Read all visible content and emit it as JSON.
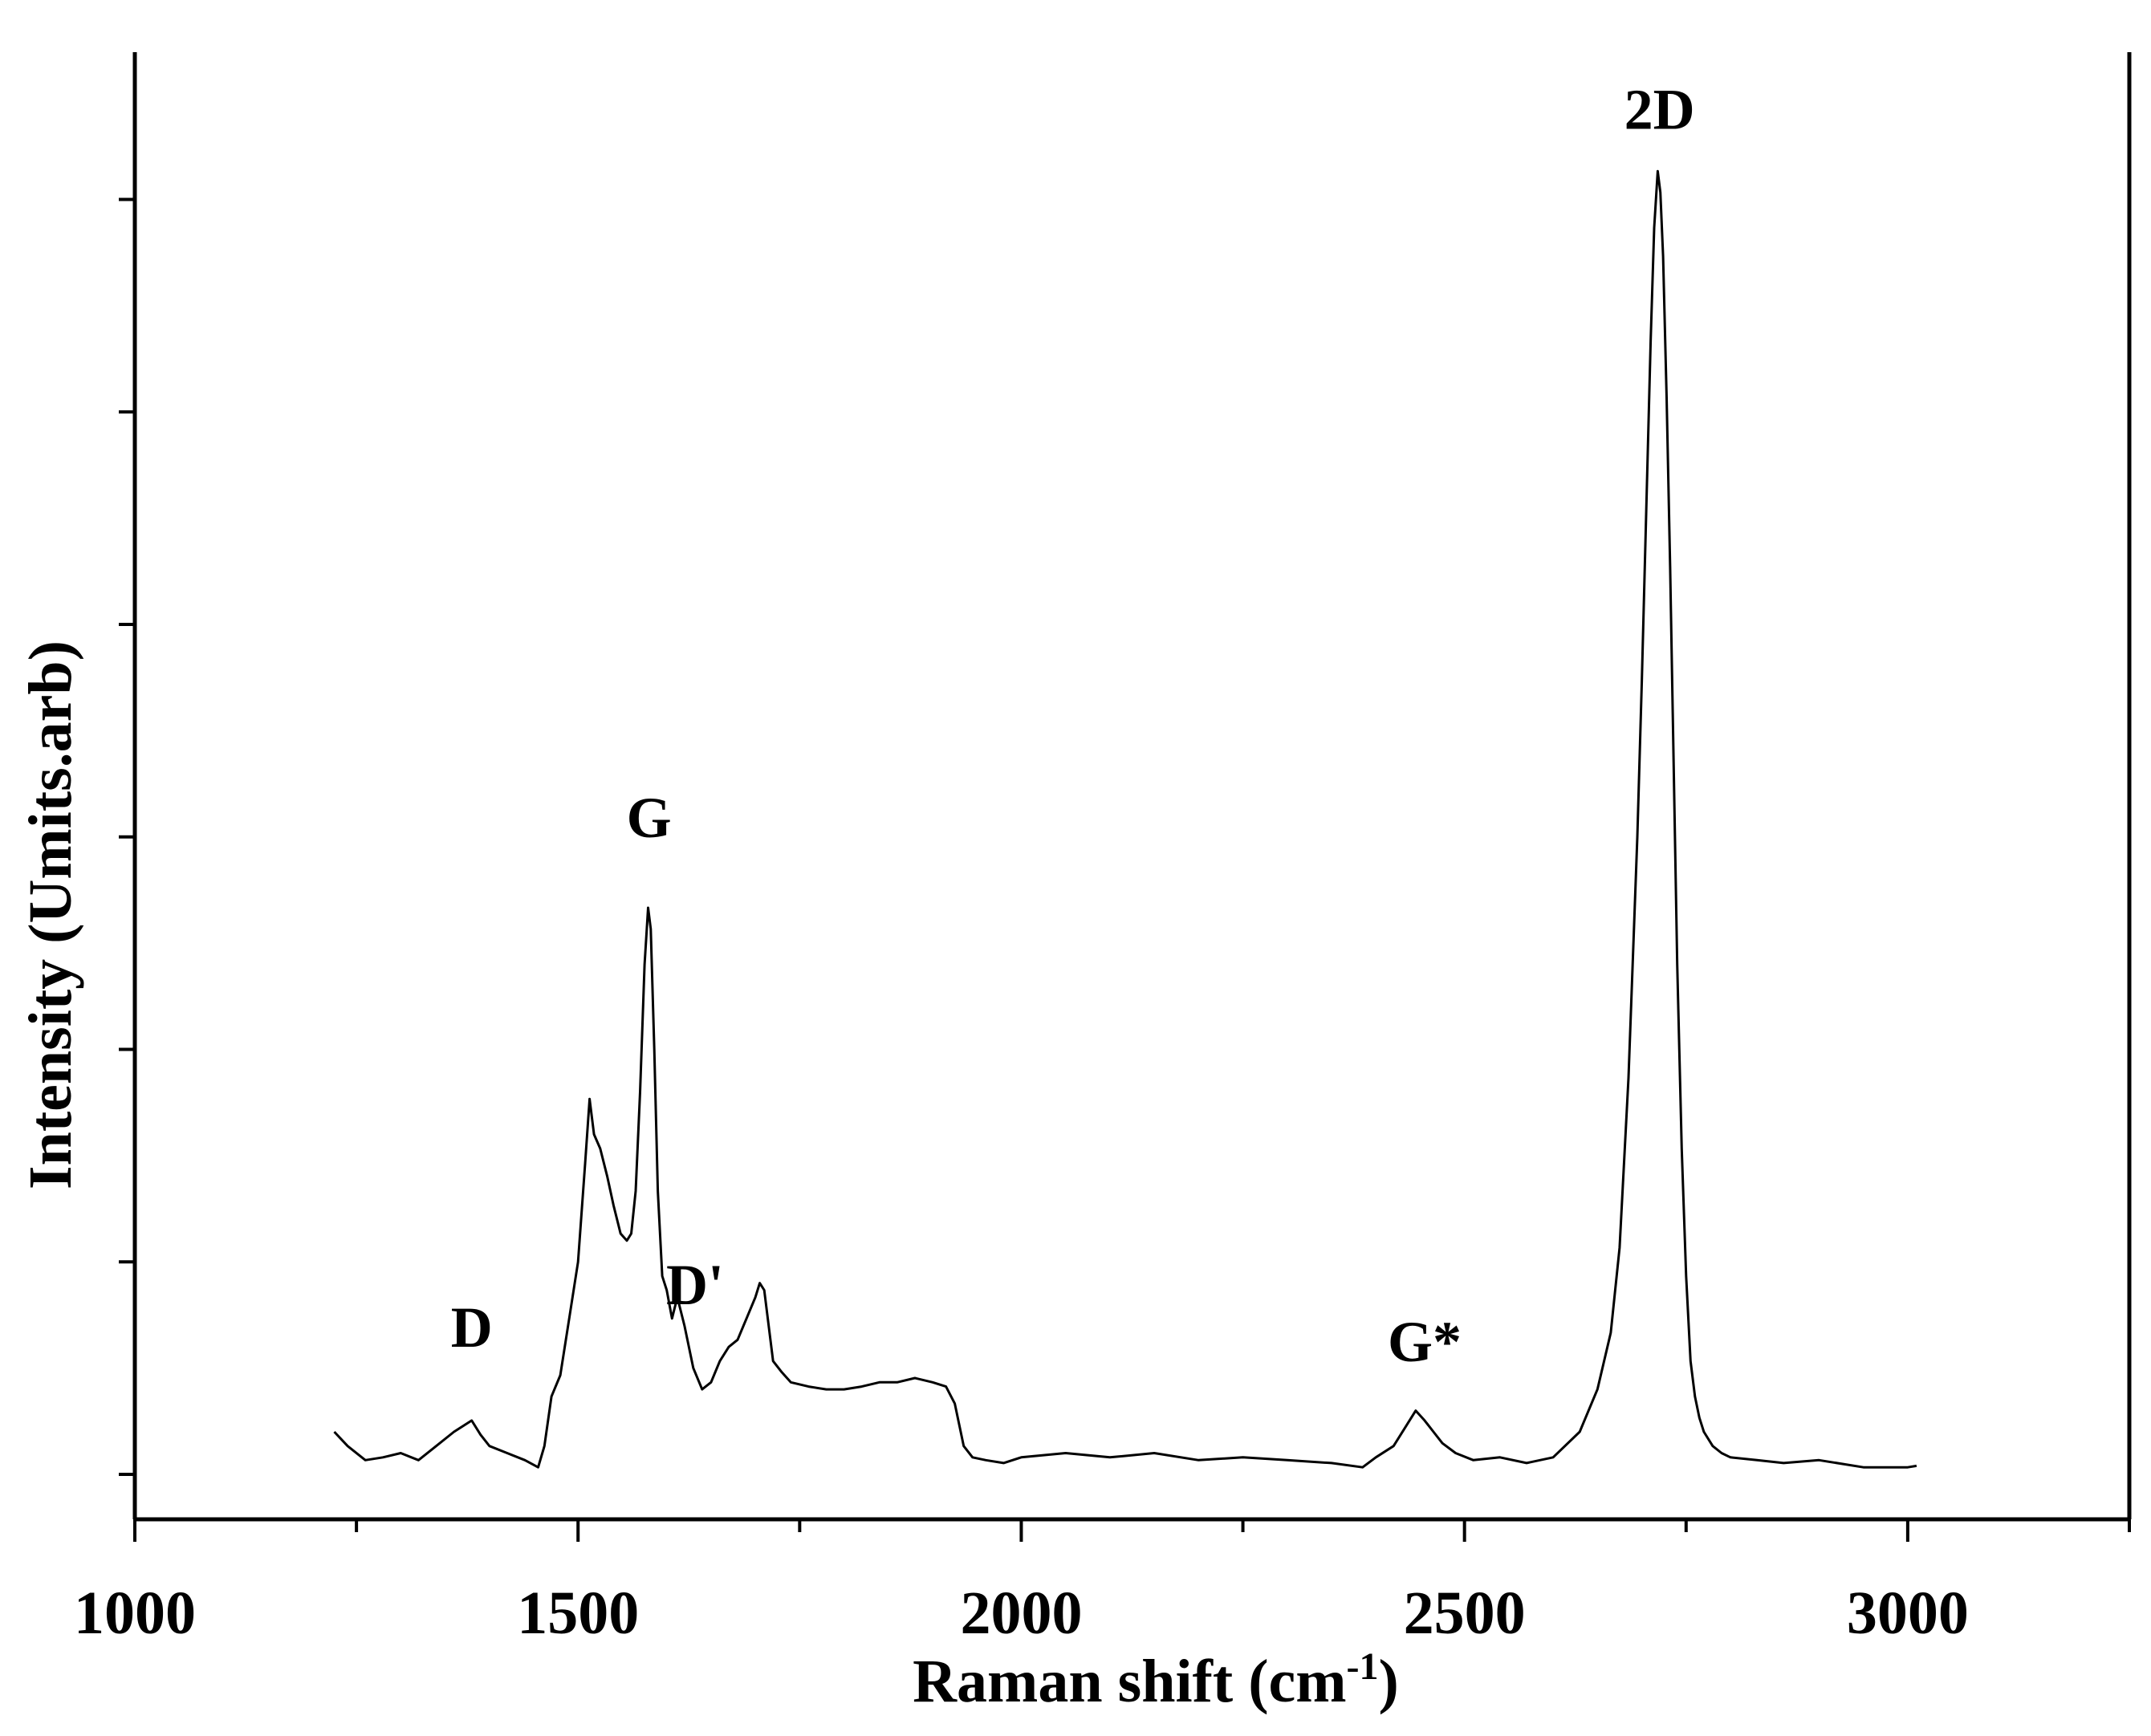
{
  "chart_data": {
    "type": "line",
    "title": "",
    "xlabel": "Raman shift (cm",
    "xlabel_sup": "-1",
    "xlabel_close": ")",
    "ylabel": "Intensity (Umits.arb)",
    "xlim": [
      1000,
      3250
    ],
    "ylim": [
      0,
      1.09
    ],
    "x_ticks": [
      1000,
      1500,
      2000,
      2500,
      3000
    ],
    "x_tick_labels": [
      "1000",
      "1500",
      "2000",
      "2500",
      "3000"
    ],
    "y_ticks_unlabeled": [
      0.0,
      0.15,
      0.3,
      0.45,
      0.6,
      0.75,
      0.9
    ],
    "grid": false,
    "line_color": "#000000",
    "annotations": [
      {
        "text": "D",
        "x": 1380,
        "y": 0.09
      },
      {
        "text": "G",
        "x": 1580,
        "y": 0.45
      },
      {
        "text": "D'",
        "x": 1632,
        "y": 0.12
      },
      {
        "text": "G*",
        "x": 2455,
        "y": 0.08
      },
      {
        "text": "2D",
        "x": 2720,
        "y": 0.95
      }
    ],
    "series": [
      {
        "x": [
          1225,
          1240,
          1260,
          1280,
          1300,
          1320,
          1340,
          1360,
          1380,
          1390,
          1400,
          1420,
          1440,
          1455,
          1462,
          1470,
          1480,
          1490,
          1500,
          1508,
          1513,
          1518,
          1525,
          1533,
          1540,
          1548,
          1555,
          1560,
          1565,
          1570,
          1575,
          1579,
          1582,
          1586,
          1590,
          1595,
          1600,
          1606,
          1612,
          1620,
          1630,
          1640,
          1650,
          1660,
          1670,
          1680,
          1690,
          1700,
          1705,
          1710,
          1715,
          1720,
          1730,
          1740,
          1760,
          1780,
          1800,
          1820,
          1840,
          1860,
          1880,
          1900,
          1915,
          1925,
          1935,
          1945,
          1960,
          1980,
          2000,
          2050,
          2100,
          2150,
          2200,
          2250,
          2300,
          2350,
          2385,
          2400,
          2420,
          2435,
          2445,
          2455,
          2465,
          2475,
          2490,
          2510,
          2540,
          2570,
          2600,
          2630,
          2650,
          2665,
          2675,
          2685,
          2695,
          2700,
          2705,
          2710,
          2714,
          2718,
          2721,
          2724,
          2728,
          2732,
          2736,
          2740,
          2745,
          2750,
          2755,
          2760,
          2765,
          2770,
          2780,
          2790,
          2800,
          2830,
          2860,
          2900,
          2950,
          3000,
          3010
        ],
        "y": [
          0.03,
          0.02,
          0.01,
          0.012,
          0.015,
          0.01,
          0.02,
          0.03,
          0.038,
          0.028,
          0.02,
          0.015,
          0.01,
          0.005,
          0.02,
          0.055,
          0.07,
          0.11,
          0.15,
          0.22,
          0.265,
          0.24,
          0.23,
          0.21,
          0.19,
          0.17,
          0.165,
          0.17,
          0.2,
          0.27,
          0.36,
          0.4,
          0.385,
          0.3,
          0.2,
          0.14,
          0.13,
          0.11,
          0.125,
          0.105,
          0.075,
          0.06,
          0.065,
          0.08,
          0.09,
          0.095,
          0.11,
          0.125,
          0.135,
          0.13,
          0.105,
          0.08,
          0.072,
          0.065,
          0.062,
          0.06,
          0.06,
          0.062,
          0.065,
          0.065,
          0.068,
          0.065,
          0.062,
          0.05,
          0.02,
          0.012,
          0.01,
          0.008,
          0.012,
          0.015,
          0.012,
          0.015,
          0.01,
          0.012,
          0.01,
          0.008,
          0.005,
          0.012,
          0.02,
          0.035,
          0.045,
          0.038,
          0.03,
          0.022,
          0.015,
          0.01,
          0.012,
          0.008,
          0.012,
          0.03,
          0.06,
          0.1,
          0.16,
          0.28,
          0.45,
          0.56,
          0.68,
          0.8,
          0.88,
          0.92,
          0.905,
          0.86,
          0.76,
          0.64,
          0.5,
          0.36,
          0.23,
          0.14,
          0.08,
          0.055,
          0.04,
          0.03,
          0.02,
          0.015,
          0.012,
          0.01,
          0.008,
          0.01,
          0.005,
          0.005,
          0.006
        ]
      }
    ]
  }
}
